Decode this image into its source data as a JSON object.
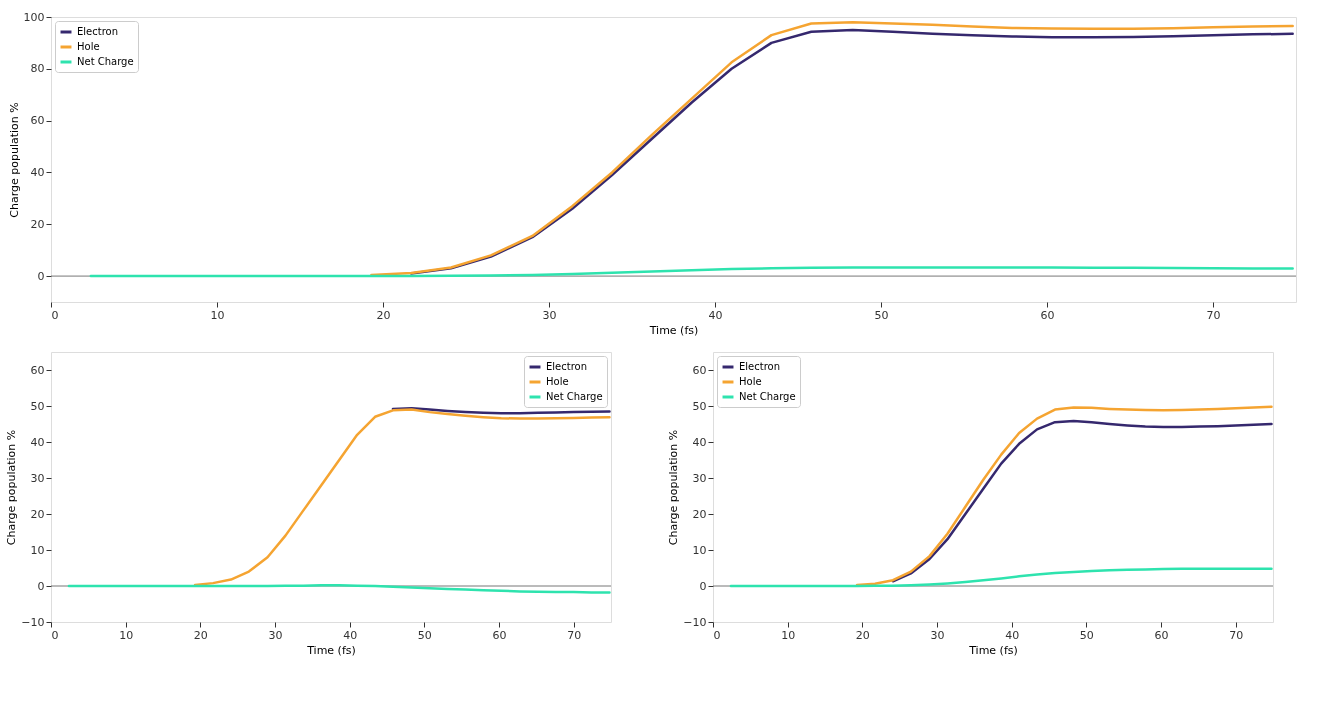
{
  "chart_data": [
    {
      "type": "line",
      "xlabel": "Time (fs)",
      "ylabel": "Charge population %",
      "xlim": [
        0,
        75
      ],
      "ylim": [
        -10,
        100
      ],
      "xticks": [
        0,
        10,
        20,
        30,
        40,
        50,
        60,
        70
      ],
      "yticks": [
        0,
        20,
        40,
        60,
        80,
        100
      ],
      "grid": false,
      "legend": "top left",
      "line_style": "solid",
      "marker": "none",
      "x": [
        2.4,
        4.8,
        7.2,
        9.7,
        12.1,
        14.5,
        16.9,
        19.3,
        21.7,
        24.1,
        26.5,
        29.0,
        31.4,
        33.8,
        36.2,
        38.6,
        41.0,
        43.4,
        45.8,
        48.3,
        50.7,
        53.1,
        55.5,
        57.9,
        60.3,
        62.8,
        65.2,
        67.6,
        70.0,
        72.4,
        74.8
      ],
      "ref_lines": [
        {
          "axis": "y",
          "value": 0,
          "label": null,
          "color": "#777777"
        }
      ],
      "series": [
        {
          "name": "Electron",
          "color": "#35286e",
          "values": [
            null,
            null,
            null,
            null,
            null,
            null,
            null,
            null,
            1,
            3,
            7.5,
            15,
            26,
            39,
            53,
            67,
            80,
            90,
            94.3,
            95,
            94.3,
            93.5,
            93,
            92.5,
            92.2,
            92.2,
            92.3,
            92.6,
            93,
            93.3,
            93.5
          ]
        },
        {
          "name": "Hole",
          "color": "#f5a431",
          "values": [
            null,
            null,
            null,
            null,
            null,
            null,
            null,
            0.4,
            1.2,
            3.3,
            8,
            15.5,
            27,
            40,
            54.5,
            68.5,
            82.5,
            93,
            97.5,
            98,
            97.5,
            97,
            96.3,
            95.8,
            95.6,
            95.5,
            95.5,
            95.7,
            96,
            96.3,
            96.5
          ]
        },
        {
          "name": "Net Charge",
          "color": "#2ee3ae",
          "values": [
            0,
            0,
            0,
            0,
            0,
            0,
            0,
            0,
            0,
            0.1,
            0.2,
            0.4,
            0.8,
            1.3,
            1.8,
            2.3,
            2.7,
            3,
            3.2,
            3.3,
            3.3,
            3.3,
            3.3,
            3.3,
            3.3,
            3.2,
            3.2,
            3.1,
            3.0,
            2.9,
            2.9
          ]
        }
      ]
    },
    {
      "type": "line",
      "xlabel": "Time (fs)",
      "ylabel": "Charge population %",
      "xlim": [
        0,
        75
      ],
      "ylim": [
        -10,
        65
      ],
      "xticks": [
        0,
        10,
        20,
        30,
        40,
        50,
        60,
        70
      ],
      "yticks": [
        {
          "value": -10,
          "label": "−10"
        },
        0,
        10,
        20,
        30,
        40,
        50,
        60
      ],
      "grid": false,
      "legend": "top right",
      "line_style": "solid",
      "marker": "none",
      "x": [
        2.4,
        4.8,
        7.2,
        9.7,
        12.1,
        14.5,
        16.9,
        19.3,
        21.7,
        24.1,
        26.5,
        29.0,
        31.4,
        33.8,
        36.2,
        38.6,
        41.0,
        43.4,
        45.8,
        48.3,
        50.7,
        53.1,
        55.5,
        57.9,
        60.3,
        62.8,
        65.2,
        67.6,
        70.0,
        72.4,
        74.8
      ],
      "ref_lines": [
        {
          "axis": "y",
          "value": 0,
          "label": null,
          "color": "#777777"
        }
      ],
      "series": [
        {
          "name": "Electron",
          "color": "#35286e",
          "values": [
            null,
            null,
            null,
            null,
            null,
            null,
            null,
            null,
            null,
            null,
            null,
            null,
            null,
            null,
            null,
            null,
            null,
            null,
            49.2,
            49.4,
            49,
            48.6,
            48.3,
            48.1,
            48,
            48,
            48.1,
            48.2,
            48.3,
            48.4,
            48.5
          ]
        },
        {
          "name": "Hole",
          "color": "#f5a431",
          "values": [
            null,
            null,
            null,
            null,
            null,
            null,
            null,
            0.3,
            0.8,
            1.8,
            4,
            8,
            14,
            21,
            28,
            35,
            42,
            47,
            48.8,
            49,
            48.3,
            47.8,
            47.3,
            46.9,
            46.6,
            46.5,
            46.5,
            46.6,
            46.7,
            46.8,
            46.9
          ]
        },
        {
          "name": "Net Charge",
          "color": "#2ee3ae",
          "values": [
            0,
            0,
            0,
            0,
            0,
            0,
            0,
            0,
            0,
            0,
            0,
            0,
            0.1,
            0.1,
            0.2,
            0.2,
            0.1,
            0,
            -0.2,
            -0.4,
            -0.6,
            -0.8,
            -1,
            -1.2,
            -1.3,
            -1.5,
            -1.6,
            -1.7,
            -1.7,
            -1.8,
            -1.8
          ]
        }
      ]
    },
    {
      "type": "line",
      "xlabel": "Time (fs)",
      "ylabel": "Charge population %",
      "xlim": [
        0,
        75
      ],
      "ylim": [
        -10,
        65
      ],
      "xticks": [
        0,
        10,
        20,
        30,
        40,
        50,
        60,
        70
      ],
      "yticks": [
        {
          "value": -10,
          "label": "−10"
        },
        0,
        10,
        20,
        30,
        40,
        50,
        60
      ],
      "grid": false,
      "legend": "top left",
      "line_style": "solid",
      "marker": "none",
      "x": [
        2.4,
        4.8,
        7.2,
        9.7,
        12.1,
        14.5,
        16.9,
        19.3,
        21.7,
        24.1,
        26.5,
        29.0,
        31.4,
        33.8,
        36.2,
        38.6,
        41.0,
        43.4,
        45.8,
        48.3,
        50.7,
        53.1,
        55.5,
        57.9,
        60.3,
        62.8,
        65.2,
        67.6,
        70.0,
        72.4,
        74.8
      ],
      "ref_lines": [
        {
          "axis": "y",
          "value": 0,
          "label": null,
          "color": "#777777"
        }
      ],
      "series": [
        {
          "name": "Electron",
          "color": "#35286e",
          "values": [
            null,
            null,
            null,
            null,
            null,
            null,
            null,
            null,
            null,
            1.3,
            3.5,
            7.5,
            13,
            20,
            27,
            34,
            39.5,
            43.5,
            45.5,
            45.8,
            45.5,
            45,
            44.6,
            44.3,
            44.2,
            44.2,
            44.3,
            44.4,
            44.6,
            44.8,
            45
          ]
        },
        {
          "name": "Hole",
          "color": "#f5a431",
          "values": [
            null,
            null,
            null,
            null,
            null,
            null,
            null,
            0.3,
            0.6,
            1.6,
            4,
            8.3,
            14.5,
            22,
            29.5,
            36.5,
            42.5,
            46.5,
            49,
            49.6,
            49.5,
            49.2,
            49,
            48.9,
            48.8,
            48.9,
            49,
            49.2,
            49.4,
            49.6,
            49.8
          ]
        },
        {
          "name": "Net Charge",
          "color": "#2ee3ae",
          "values": [
            0,
            0,
            0,
            0,
            0,
            0,
            0,
            0,
            0.1,
            0.1,
            0.2,
            0.4,
            0.7,
            1.1,
            1.6,
            2.1,
            2.7,
            3.2,
            3.6,
            3.9,
            4.2,
            4.4,
            4.5,
            4.6,
            4.7,
            4.8,
            4.8,
            4.8,
            4.8,
            4.8,
            4.8
          ]
        }
      ]
    }
  ]
}
